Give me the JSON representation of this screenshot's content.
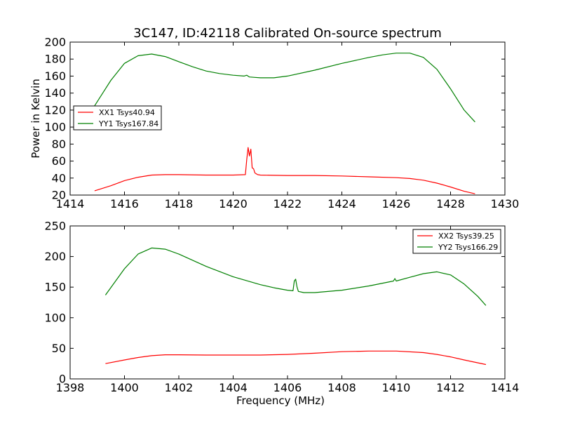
{
  "figure": {
    "title": "3C147, ID:42118 Calibrated On-source spectrum"
  },
  "chart_data": [
    {
      "type": "line",
      "title": "3C147, ID:42118 Calibrated On-source spectrum",
      "xlabel": "",
      "ylabel": "Power in Kelvin",
      "xlim": [
        1414,
        1430
      ],
      "ylim": [
        20,
        200
      ],
      "xticks": [
        1414,
        1416,
        1418,
        1420,
        1422,
        1424,
        1426,
        1428,
        1430
      ],
      "yticks": [
        20,
        40,
        60,
        80,
        100,
        120,
        140,
        160,
        180,
        200
      ],
      "grid": false,
      "legend_position": "center-left",
      "series": [
        {
          "name": "XX1 Tsys40.94",
          "color": "#ff0000",
          "x": [
            1414.9,
            1415.5,
            1416.0,
            1416.5,
            1417.0,
            1417.5,
            1418.0,
            1419.0,
            1420.0,
            1420.45,
            1420.5,
            1420.55,
            1420.6,
            1420.65,
            1420.7,
            1420.75,
            1420.8,
            1420.9,
            1421.0,
            1422.0,
            1423.0,
            1424.0,
            1425.0,
            1426.0,
            1426.5,
            1427.0,
            1427.5,
            1428.0,
            1428.5,
            1428.9
          ],
          "y": [
            25,
            31,
            37,
            41,
            43.5,
            44,
            44,
            43.5,
            43.5,
            44,
            62,
            76,
            66,
            74,
            52,
            51,
            46,
            44,
            43.5,
            43,
            43,
            42.5,
            41.5,
            40.5,
            39.5,
            37.5,
            34,
            29.5,
            24.5,
            21.5
          ]
        },
        {
          "name": "YY1 Tsys167.84",
          "color": "#008000",
          "x": [
            1414.9,
            1415.5,
            1416.0,
            1416.5,
            1417.0,
            1417.5,
            1418.0,
            1418.5,
            1419.0,
            1419.5,
            1420.0,
            1420.4,
            1420.5,
            1420.6,
            1420.8,
            1421.0,
            1421.5,
            1422.0,
            1423.0,
            1424.0,
            1425.0,
            1425.5,
            1426.0,
            1426.5,
            1427.0,
            1427.5,
            1428.0,
            1428.5,
            1428.9
          ],
          "y": [
            125,
            155,
            175,
            184,
            186,
            183,
            177,
            171,
            166,
            163,
            161,
            160,
            161,
            159,
            158.5,
            158,
            158,
            160,
            167,
            175,
            182,
            185,
            187,
            187,
            182,
            168,
            145,
            120,
            106
          ]
        }
      ]
    },
    {
      "type": "line",
      "title": "",
      "xlabel": "Frequency (MHz)",
      "ylabel": "",
      "xlim": [
        1398,
        1414
      ],
      "ylim": [
        0,
        250
      ],
      "xticks": [
        1398,
        1400,
        1402,
        1404,
        1406,
        1408,
        1410,
        1412,
        1414
      ],
      "yticks": [
        0,
        50,
        100,
        150,
        200,
        250
      ],
      "grid": false,
      "legend_position": "top-right",
      "series": [
        {
          "name": "XX2 Tsys39.25",
          "color": "#ff0000",
          "x": [
            1399.3,
            1400.0,
            1400.5,
            1401.0,
            1401.5,
            1402.0,
            1403.0,
            1404.0,
            1405.0,
            1406.0,
            1407.0,
            1408.0,
            1409.0,
            1410.0,
            1411.0,
            1411.5,
            1412.0,
            1412.5,
            1413.3
          ],
          "y": [
            25,
            31,
            35,
            38,
            39.5,
            39.5,
            39,
            39,
            39,
            40,
            42,
            44.5,
            45.5,
            45.5,
            43,
            40,
            36,
            31,
            23.5
          ]
        },
        {
          "name": "YY2 Tsys166.29",
          "color": "#008000",
          "x": [
            1399.3,
            1400.0,
            1400.5,
            1401.0,
            1401.5,
            1402.0,
            1403.0,
            1404.0,
            1405.0,
            1405.5,
            1406.0,
            1406.2,
            1406.25,
            1406.3,
            1406.35,
            1406.4,
            1406.6,
            1407.0,
            1408.0,
            1409.0,
            1409.9,
            1409.95,
            1410.0,
            1410.5,
            1411.0,
            1411.5,
            1412.0,
            1412.5,
            1413.0,
            1413.3
          ],
          "y": [
            137,
            180,
            204,
            214,
            212,
            204,
            184,
            167,
            154,
            149,
            145,
            144,
            160,
            163,
            150,
            143,
            141,
            141,
            145,
            152,
            160,
            164,
            160,
            166,
            172,
            175,
            170,
            155,
            135,
            120
          ]
        }
      ]
    }
  ]
}
